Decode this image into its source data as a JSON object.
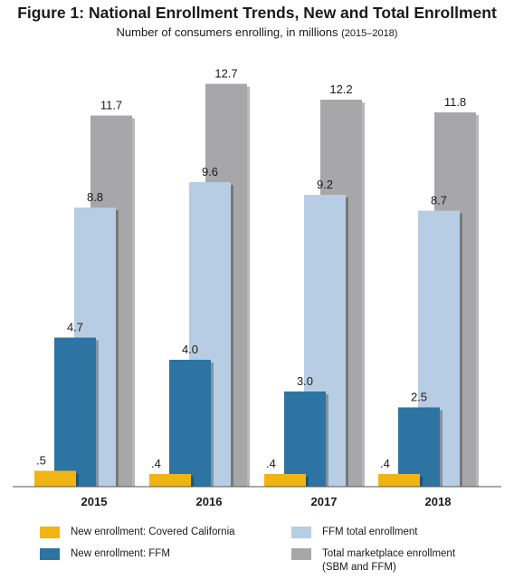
{
  "chart_data": {
    "type": "bar",
    "title": "Figure 1: National Enrollment Trends, New and Total Enrollment",
    "subtitle_main": "Number of consumers enrolling, in millions",
    "subtitle_range": "(2015–2018)",
    "categories": [
      "2015",
      "2016",
      "2017",
      "2018"
    ],
    "series": [
      {
        "name": "New enrollment: Covered California",
        "values": [
          0.5,
          0.4,
          0.4,
          0.4
        ],
        "labels": [
          ".5",
          ".4",
          ".4",
          ".4"
        ],
        "color": "#f0b514"
      },
      {
        "name": "New enrollment: FFM",
        "values": [
          4.7,
          4.0,
          3.0,
          2.5
        ],
        "labels": [
          "4.7",
          "4.0",
          "3.0",
          "2.5"
        ],
        "color": "#2d74a3"
      },
      {
        "name": "FFM total enrollment",
        "values": [
          8.8,
          9.6,
          9.2,
          8.7
        ],
        "labels": [
          "8.8",
          "9.6",
          "9.2",
          "8.7"
        ],
        "color": "#b7cde4"
      },
      {
        "name": "Total marketplace enrollment (SBM and FFM)",
        "values": [
          11.7,
          12.7,
          12.2,
          11.8
        ],
        "labels": [
          "11.7",
          "12.7",
          "12.2",
          "11.8"
        ],
        "color": "#a7a7a9"
      }
    ],
    "ylim": [
      0,
      13
    ],
    "grid": false,
    "legend_position": "bottom"
  },
  "legend": {
    "items": [
      {
        "line1": "New enrollment: Covered California",
        "line2": ""
      },
      {
        "line1": "FFM total enrollment",
        "line2": ""
      },
      {
        "line1": "New enrollment: FFM",
        "line2": ""
      },
      {
        "line1": "Total marketplace enrollment",
        "line2": "(SBM and FFM)"
      }
    ]
  }
}
